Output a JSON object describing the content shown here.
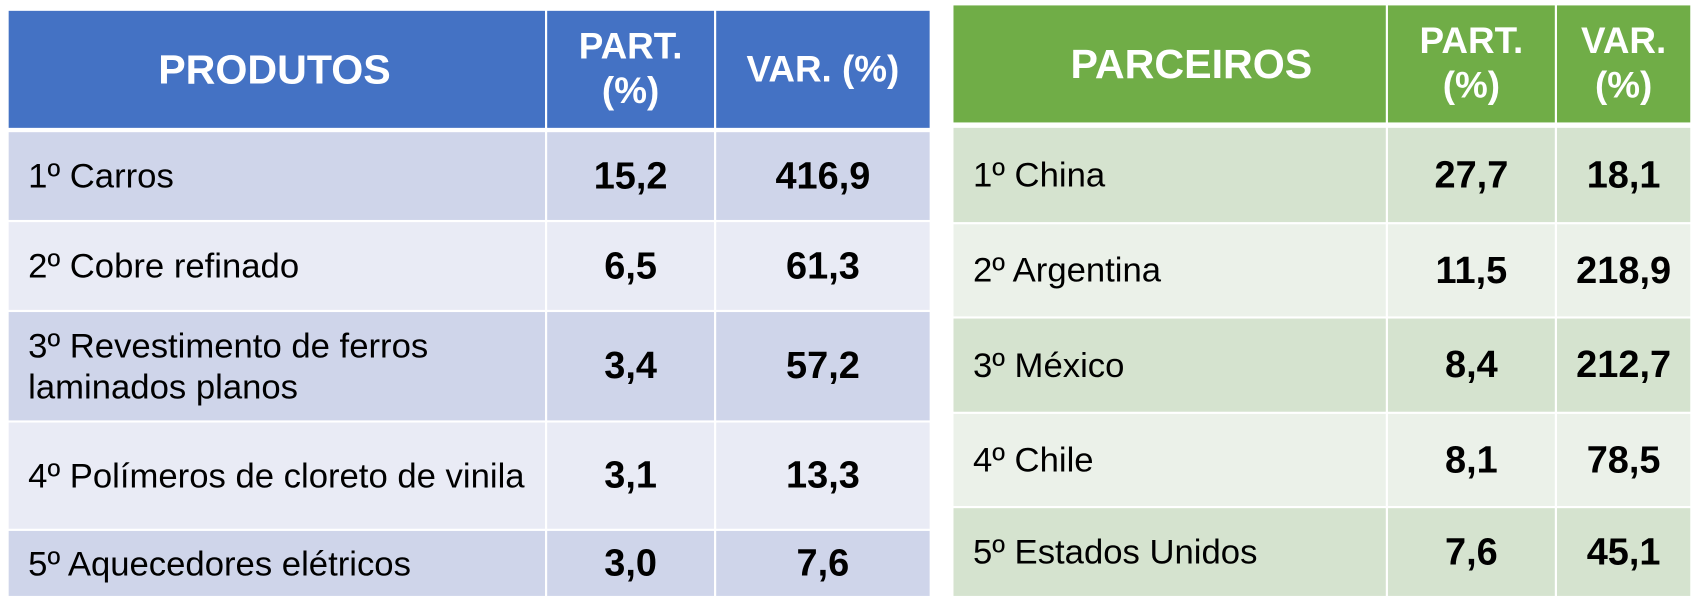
{
  "produtos": {
    "header": {
      "title": "PRODUTOS",
      "part": "PART. (%)",
      "var": "VAR. (%)"
    },
    "rows": [
      [
        "1º Carros",
        "15,2",
        "416,9"
      ],
      [
        "2º Cobre refinado",
        "6,5",
        "61,3"
      ],
      [
        "3º Revestimento de ferros laminados planos",
        "3,4",
        "57,2"
      ],
      [
        "4º Polímeros de cloreto de vinila",
        "3,1",
        "13,3"
      ],
      [
        "5º Aquecedores elétricos",
        "3,0",
        "7,6"
      ]
    ]
  },
  "parceiros": {
    "header": {
      "title": "PARCEIROS",
      "part": "PART. (%)",
      "var": "VAR. (%)"
    },
    "rows": [
      [
        "1º China",
        "27,7",
        "18,1"
      ],
      [
        "2º Argentina",
        "11,5",
        "218,9"
      ],
      [
        "3º México",
        "8,4",
        "212,7"
      ],
      [
        "4º Chile",
        "8,1",
        "78,5"
      ],
      [
        "5º Estados Unidos",
        "7,6",
        "45,1"
      ]
    ]
  }
}
